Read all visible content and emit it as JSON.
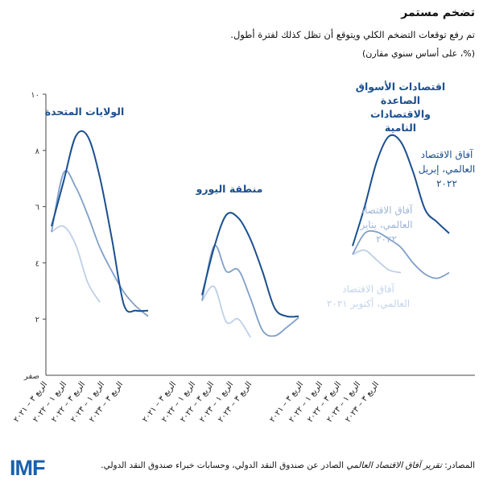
{
  "header": {
    "title": "تضخم مستمر",
    "subtitle": "تم رفع توقعات التضخم الكلي ويتوقع أن تظل كذلك لفترة أطول.",
    "units": "(%، على أساس سنوي مقارن)"
  },
  "chart_data": {
    "type": "line",
    "ylim": [
      0,
      10
    ],
    "yticks": [
      {
        "value": 10,
        "label": "١٠"
      },
      {
        "value": 8,
        "label": "٨"
      },
      {
        "value": 6,
        "label": "٦"
      },
      {
        "value": 4,
        "label": "٤"
      },
      {
        "value": 2,
        "label": "٢"
      },
      {
        "value": 0,
        "label": "صفر"
      }
    ],
    "x": [
      "2021Q3",
      "2021Q4",
      "2022Q1",
      "2022Q2",
      "2022Q3",
      "2022Q4",
      "2023Q1",
      "2023Q2",
      "2023Q3"
    ],
    "xtick_labels": [
      "الربع ٣ – ٢٠٢١",
      "الربع ١ – ٢٠٢٢",
      "الربع ٣ – ٢٠٢٢",
      "الربع ١ – ٢٠٢٣",
      "الربع ٣ – ٢٠٢٣"
    ],
    "grid": false,
    "series_styles": {
      "apr2022": {
        "color": "#1a4f8f",
        "label": "آفاق الاقتصاد العالمي، إبريل ٢٠٢٢"
      },
      "jan2022": {
        "color": "#7f9fc9",
        "label": "آفاق الاقتصاد العالمي، يناير ٢٠٢٢"
      },
      "oct2021": {
        "color": "#bdd0e8",
        "label": "آفاق الاقتصاد العالمي، أكتوبر ٢٠٢١"
      }
    },
    "panels": [
      {
        "name": "الولايات المتحدة",
        "series": {
          "apr2022": [
            5.3,
            6.9,
            8.5,
            8.5,
            7.05,
            4.85,
            2.5,
            2.3,
            2.3
          ],
          "jan2022": [
            5.1,
            7.2,
            6.7,
            5.7,
            4.55,
            3.7,
            2.95,
            2.45,
            2.1
          ],
          "oct2021": [
            5.1,
            5.3,
            4.65,
            3.3,
            2.6
          ]
        }
      },
      {
        "name": "منطقة اليورو",
        "series": {
          "apr2022": [
            2.85,
            4.55,
            5.7,
            5.6,
            4.85,
            3.7,
            2.4,
            2.1,
            2.1
          ],
          "jan2022": [
            2.65,
            4.6,
            3.7,
            3.75,
            2.75,
            1.6,
            1.4,
            1.7,
            2.05
          ],
          "oct2021": [
            2.65,
            3.15,
            1.9,
            2.0,
            1.35
          ]
        }
      },
      {
        "name": "اقتصادات الأسواق الصاعدة والاقتصادات النامية",
        "series": {
          "apr2022": [
            4.6,
            6.0,
            7.6,
            8.5,
            8.3,
            7.25,
            5.9,
            5.45,
            5.05
          ],
          "jan2022": [
            4.3,
            5.05,
            5.1,
            4.85,
            4.55,
            4.0,
            3.6,
            3.45,
            3.65
          ],
          "oct2021": [
            4.3,
            4.45,
            4.1,
            3.75,
            3.65
          ]
        }
      }
    ]
  },
  "footer": {
    "source_prefix": "المصادر: ",
    "source_italic": "تقرير آفاق الاقتصاد العالمي",
    "source_rest": " الصادر عن صندوق النقد الدولي، وحسابات خبراء صندوق النقد الدولي.",
    "logo": "IMF"
  }
}
